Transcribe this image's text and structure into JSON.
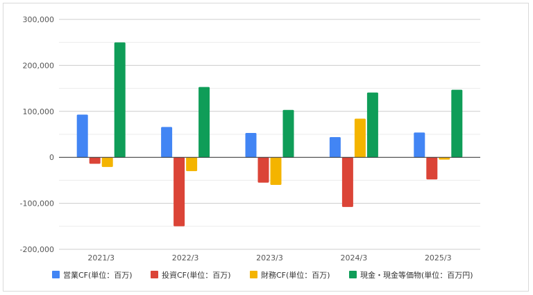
{
  "chart_data": {
    "type": "bar",
    "title": "",
    "xlabel": "",
    "ylabel": "",
    "categories": [
      "2021/3",
      "2022/3",
      "2023/3",
      "2024/3",
      "2025/3"
    ],
    "ylim": [
      -200000,
      300000
    ],
    "yticks": [
      -200000,
      -100000,
      0,
      100000,
      200000,
      300000
    ],
    "ytick_labels": [
      "-200,000",
      "-100,000",
      "0",
      "100,000",
      "200,000",
      "300,000"
    ],
    "grid": true,
    "legend_position": "bottom",
    "series": [
      {
        "name": "営業CF(単位：百万)",
        "color": "#4285F4",
        "values": [
          93000,
          66000,
          53000,
          44000,
          54000
        ]
      },
      {
        "name": "投資CF(単位：百万)",
        "color": "#DB4437",
        "values": [
          -14000,
          -150000,
          -55000,
          -108000,
          -48000
        ]
      },
      {
        "name": "財務CF(単位：百万)",
        "color": "#F4B400",
        "values": [
          -21000,
          -30000,
          -60000,
          84000,
          -5000
        ]
      },
      {
        "name": "現金・現金等価物(単位：百万円)",
        "color": "#0F9D58",
        "values": [
          250000,
          153000,
          103000,
          141000,
          147000
        ]
      }
    ]
  }
}
